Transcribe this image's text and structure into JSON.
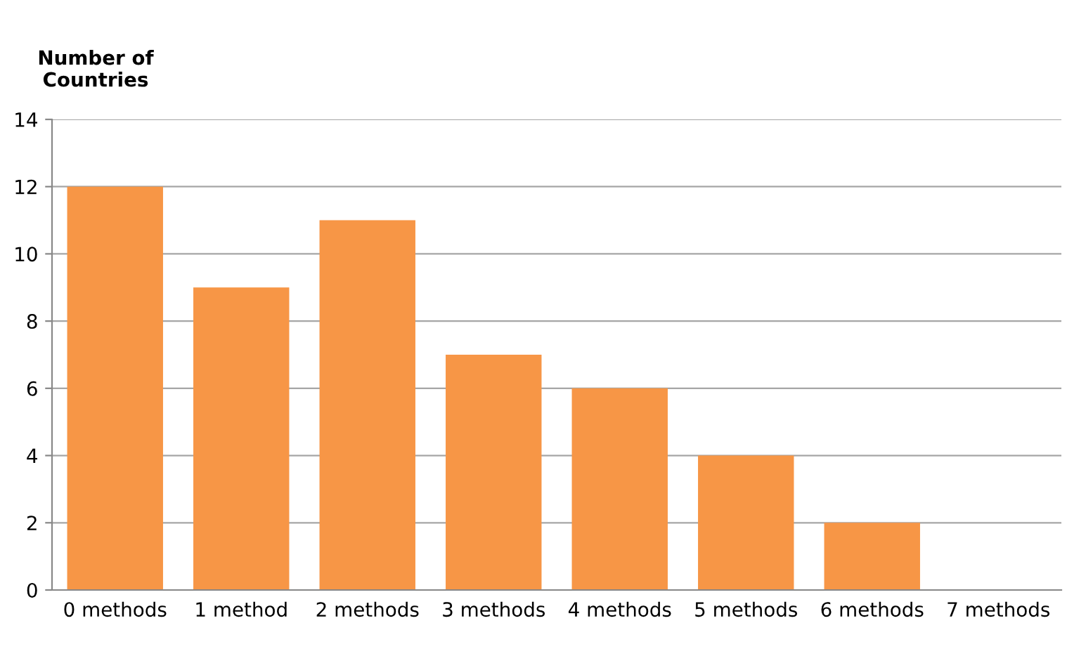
{
  "chart_data": {
    "type": "bar",
    "ylabel": "Number of\nCountries",
    "categories": [
      "0 methods",
      "1 method",
      "2 methods",
      "3 methods",
      "4 methods",
      "5 methods",
      "6 methods",
      "7 methods"
    ],
    "values": [
      12,
      9,
      11,
      7,
      6,
      4,
      2,
      0
    ],
    "color": "#f79646",
    "ylim": [
      0,
      14
    ],
    "yticks": [
      0,
      2,
      4,
      6,
      8,
      10,
      12,
      14
    ],
    "grid": "y",
    "legend": false
  }
}
